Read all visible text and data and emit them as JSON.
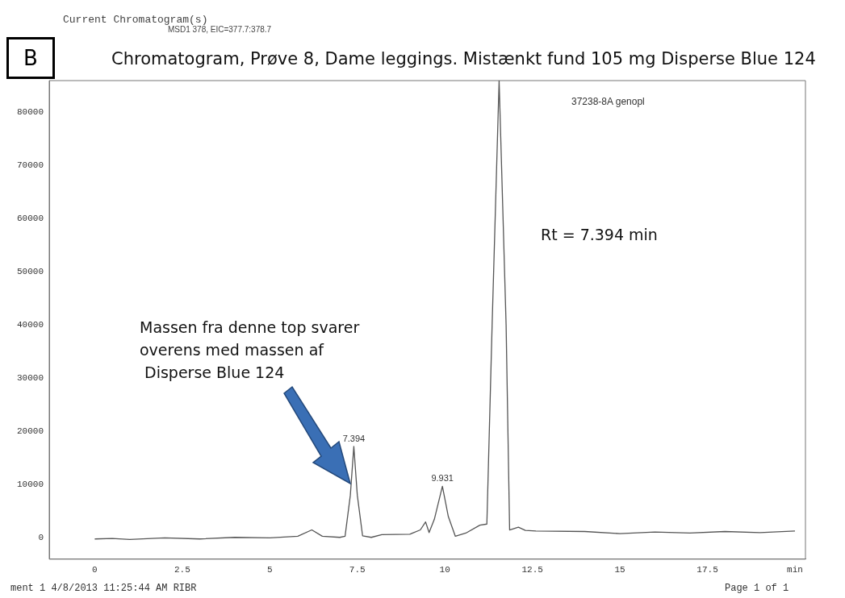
{
  "chart_data": {
    "type": "line",
    "title": "Chromatogram, Prøve 8, Dame leggings. Mistænkt fund 105 mg Disperse Blue 124",
    "x": [
      0,
      0.5,
      1,
      2,
      3,
      4,
      5,
      5.8,
      6.2,
      6.5,
      7.0,
      7.15,
      7.3,
      7.4,
      7.5,
      7.65,
      7.9,
      8.2,
      9.0,
      9.3,
      9.45,
      9.55,
      9.7,
      9.93,
      10.1,
      10.3,
      10.6,
      11.0,
      11.2,
      11.35,
      11.55,
      11.75,
      11.85,
      12.1,
      12.3,
      12.6,
      14,
      15,
      16,
      17,
      18,
      19,
      20
    ],
    "series": [
      {
        "color": "#555555",
        "values": [
          -200,
          -100,
          -300,
          0,
          -200,
          100,
          0,
          300,
          1500,
          300,
          100,
          300,
          8000,
          17200,
          8000,
          400,
          100,
          600,
          700,
          1500,
          3000,
          1000,
          3500,
          9700,
          4000,
          300,
          900,
          2400,
          2600,
          40000,
          86000,
          40000,
          1500,
          2000,
          1400,
          1300,
          1200,
          800,
          1100,
          900,
          1200,
          1000,
          1300
        ]
      }
    ],
    "xlim": [
      -1.3,
      20.3
    ],
    "ylim": [
      -4000,
      86000
    ],
    "xticks": [
      0,
      2.5,
      5,
      7.5,
      10,
      12.5,
      15,
      17.5,
      {
        "value": 20,
        "label": "min"
      }
    ],
    "yticks": [
      0,
      10000,
      20000,
      30000,
      40000,
      50000,
      60000,
      70000,
      80000
    ],
    "grid": false,
    "legend": false,
    "marker": "none",
    "line_style": "solid",
    "annotations": [
      "Current Chromatogram(s)",
      "MSD1 378, EIC=377.7:378.7",
      "B",
      "37238-8A genopl",
      "Rt = 7.394 min",
      "Massen fra denne top svarer\noverens med massen af\n Disperse Blue 124",
      "ment 1 4/8/2013 11:25:44 AM RIBR",
      "Page 1 of 1",
      {
        "text": "7.394",
        "x": 7.4,
        "y": 17200
      },
      {
        "text": "9.931",
        "x": 9.93,
        "y": 9700
      }
    ]
  }
}
